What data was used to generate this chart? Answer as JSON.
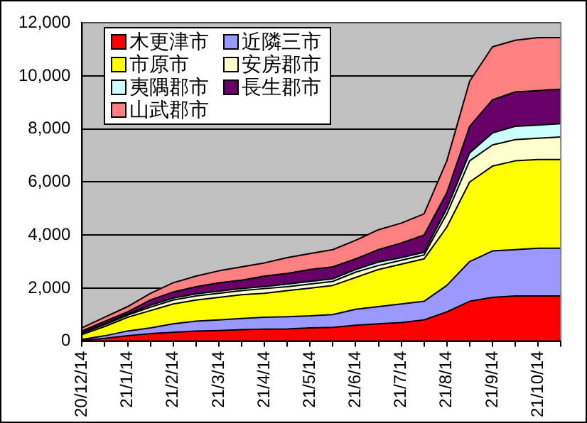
{
  "chart_data": {
    "type": "area",
    "stacked": true,
    "grid": "y",
    "legend": "top left",
    "categories": [
      "20/12/14",
      null,
      "21/1/14",
      null,
      "21/2/14",
      null,
      "21/3/14",
      null,
      "21/4/14",
      null,
      "21/5/14",
      null,
      "21/6/14",
      null,
      "21/7/14",
      null,
      "21/8/14",
      null,
      "21/9/14",
      null,
      "21/10/14",
      null
    ],
    "ylim": [
      0,
      12000
    ],
    "yticks": [
      {
        "value": 0,
        "label": "0"
      },
      {
        "value": 2000,
        "label": "2,000"
      },
      {
        "value": 4000,
        "label": "4,000"
      },
      {
        "value": 6000,
        "label": "6,000"
      },
      {
        "value": 8000,
        "label": "8,000"
      },
      {
        "value": 10000,
        "label": "10,000"
      },
      {
        "value": 12000,
        "label": "12,000"
      }
    ],
    "series": [
      {
        "name": "木更津市",
        "color": "#ff0000",
        "values": [
          20,
          100,
          200,
          280,
          330,
          380,
          400,
          430,
          450,
          460,
          500,
          520,
          600,
          650,
          700,
          800,
          1100,
          1500,
          1650,
          1700,
          1700,
          1700
        ]
      },
      {
        "name": "近隣三市",
        "color": "#9999ff",
        "values": [
          40,
          100,
          180,
          220,
          320,
          370,
          400,
          420,
          450,
          460,
          450,
          480,
          600,
          650,
          700,
          700,
          1000,
          1500,
          1750,
          1750,
          1800,
          1800
        ]
      },
      {
        "name": "市原市",
        "color": "#ffff00",
        "values": [
          190,
          350,
          520,
          650,
          750,
          800,
          850,
          900,
          900,
          980,
          1050,
          1100,
          1200,
          1400,
          1500,
          1600,
          2200,
          3000,
          3200,
          3350,
          3350,
          3350
        ]
      },
      {
        "name": "安房郡市",
        "color": "#ffffcc",
        "values": [
          50,
          70,
          80,
          130,
          150,
          150,
          150,
          150,
          180,
          150,
          150,
          150,
          200,
          150,
          150,
          150,
          500,
          800,
          800,
          800,
          800,
          850
        ]
      },
      {
        "name": "夷隅郡市",
        "color": "#ccffff",
        "values": [
          20,
          30,
          40,
          70,
          70,
          80,
          80,
          80,
          80,
          100,
          100,
          100,
          100,
          130,
          100,
          100,
          200,
          300,
          450,
          500,
          500,
          500
        ]
      },
      {
        "name": "長生郡市",
        "color": "#660066",
        "values": [
          60,
          100,
          80,
          200,
          230,
          270,
          320,
          320,
          390,
          400,
          450,
          450,
          400,
          470,
          550,
          650,
          600,
          1000,
          1250,
          1300,
          1300,
          1300
        ]
      },
      {
        "name": "山武郡市",
        "color": "#ff8080",
        "values": [
          120,
          150,
          200,
          250,
          350,
          400,
          450,
          500,
          500,
          600,
          600,
          650,
          700,
          750,
          750,
          800,
          1200,
          1700,
          2000,
          1950,
          2000,
          1950
        ]
      }
    ]
  }
}
